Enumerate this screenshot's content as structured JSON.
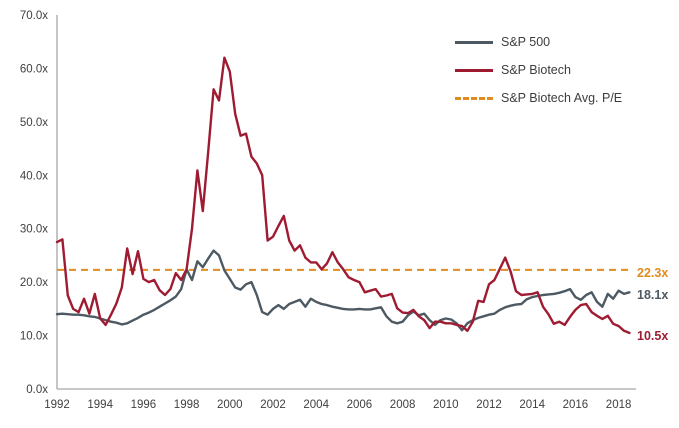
{
  "chart_data": {
    "type": "line",
    "title": "",
    "xlabel": "",
    "ylabel": "",
    "grid": false,
    "x_start": 1992,
    "x_step": 0.25,
    "x_range": [
      1992,
      2018.5
    ],
    "ylim": [
      0,
      70
    ],
    "y_ticks": [
      {
        "value": 0,
        "label": "0.0x"
      },
      {
        "value": 10,
        "label": "10.0x"
      },
      {
        "value": 20,
        "label": "20.0x"
      },
      {
        "value": 30,
        "label": "30.0x"
      },
      {
        "value": 40,
        "label": "40.0x"
      },
      {
        "value": 50,
        "label": "50.0x"
      },
      {
        "value": 60,
        "label": "60.0x"
      },
      {
        "value": 70,
        "label": "70.0x"
      }
    ],
    "x_ticks": [
      {
        "value": 1992,
        "label": "1992"
      },
      {
        "value": 1994,
        "label": "1994"
      },
      {
        "value": 1996,
        "label": "1996"
      },
      {
        "value": 1998,
        "label": "1998"
      },
      {
        "value": 2000,
        "label": "2000"
      },
      {
        "value": 2002,
        "label": "2002"
      },
      {
        "value": 2004,
        "label": "2004"
      },
      {
        "value": 2006,
        "label": "2006"
      },
      {
        "value": 2008,
        "label": "2008"
      },
      {
        "value": 2010,
        "label": "2010"
      },
      {
        "value": 2012,
        "label": "2012"
      },
      {
        "value": 2014,
        "label": "2014"
      },
      {
        "value": 2016,
        "label": "2016"
      },
      {
        "value": 2018,
        "label": "2018"
      }
    ],
    "series": [
      {
        "name": "S&P 500",
        "color": "#4D5A63",
        "values": [
          14.0,
          14.1,
          14.0,
          13.9,
          13.9,
          13.8,
          13.6,
          13.5,
          13.2,
          12.9,
          12.6,
          12.4,
          12.1,
          12.3,
          12.8,
          13.3,
          13.9,
          14.3,
          14.8,
          15.4,
          16.0,
          16.6,
          17.3,
          18.7,
          22.4,
          20.4,
          23.9,
          22.8,
          24.4,
          25.9,
          25.0,
          22.2,
          20.6,
          19.0,
          18.6,
          19.6,
          20.0,
          17.6,
          14.4,
          13.9,
          15.0,
          15.7,
          15.0,
          15.9,
          16.3,
          16.7,
          15.4,
          16.9,
          16.3,
          15.9,
          15.7,
          15.4,
          15.2,
          15.0,
          14.9,
          14.9,
          15.0,
          14.9,
          14.9,
          15.1,
          15.3,
          13.6,
          12.6,
          12.3,
          12.6,
          13.8,
          14.5,
          13.8,
          14.1,
          12.9,
          12.0,
          12.9,
          13.2,
          13.0,
          12.3,
          11.0,
          12.3,
          12.9,
          13.3,
          13.6,
          13.9,
          14.1,
          14.8,
          15.3,
          15.6,
          15.8,
          15.9,
          16.8,
          17.2,
          17.4,
          17.6,
          17.7,
          17.8,
          18.0,
          18.3,
          18.7,
          17.2,
          16.7,
          17.6,
          18.1,
          16.3,
          15.4,
          17.8,
          16.9,
          18.4,
          17.8,
          18.1
        ]
      },
      {
        "name": "S&P Biotech",
        "color": "#9E1B32",
        "values": [
          27.5,
          28.0,
          17.5,
          15.0,
          14.4,
          16.9,
          14.1,
          17.8,
          13.2,
          12.0,
          13.9,
          16.0,
          19.0,
          26.3,
          21.5,
          25.8,
          20.6,
          20.0,
          20.4,
          18.5,
          17.6,
          18.7,
          21.7,
          20.4,
          22.4,
          30.0,
          40.9,
          33.3,
          44.4,
          56.1,
          54.0,
          62.0,
          59.4,
          51.5,
          47.4,
          47.8,
          43.5,
          42.2,
          40.0,
          27.8,
          28.5,
          30.5,
          32.4,
          27.8,
          25.9,
          26.9,
          24.6,
          23.7,
          23.7,
          22.4,
          23.5,
          25.6,
          23.7,
          22.4,
          20.9,
          20.4,
          20.0,
          18.1,
          18.4,
          18.7,
          17.3,
          17.5,
          17.8,
          15.1,
          14.3,
          14.2,
          14.8,
          13.6,
          12.9,
          11.4,
          12.6,
          12.6,
          12.3,
          12.3,
          12.0,
          11.8,
          10.9,
          12.6,
          16.5,
          16.3,
          19.6,
          20.4,
          22.5,
          24.6,
          22.0,
          18.3,
          17.6,
          17.7,
          17.8,
          18.1,
          15.4,
          14.0,
          12.2,
          12.6,
          12.0,
          13.5,
          14.8,
          15.7,
          15.9,
          14.4,
          13.7,
          13.1,
          13.7,
          12.2,
          11.8,
          10.9,
          10.5
        ]
      }
    ],
    "avg_line": {
      "name": "S&P Biotech Avg. P/E",
      "value": 22.3,
      "color": "#E08C1E",
      "style": "dashed"
    },
    "end_labels": [
      {
        "text": "22.3x",
        "value": 22.3,
        "color": "#E08C1E"
      },
      {
        "text": "18.1x",
        "value": 18.1,
        "color": "#4D5A63"
      },
      {
        "text": "10.5x",
        "value": 10.5,
        "color": "#9E1B32"
      }
    ],
    "legend": [
      {
        "label": "S&P 500",
        "color": "#4D5A63",
        "dashed": false
      },
      {
        "label": "S&P Biotech",
        "color": "#9E1B32",
        "dashed": false
      },
      {
        "label": "S&P Biotech Avg. P/E",
        "color": "#E08C1E",
        "dashed": true
      }
    ],
    "axis_color": "#A6A6A6"
  }
}
